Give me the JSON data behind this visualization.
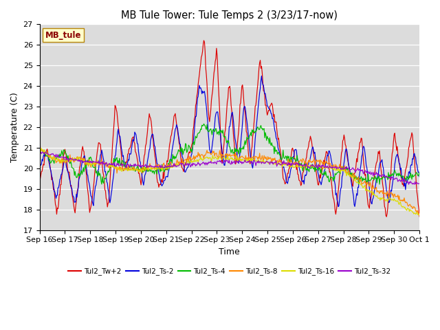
{
  "title": "MB Tule Tower: Tule Temps 2 (3/23/17-now)",
  "xlabel": "Time",
  "ylabel": "Temperature (C)",
  "ylim": [
    17.0,
    27.0
  ],
  "yticks": [
    17.0,
    18.0,
    19.0,
    20.0,
    21.0,
    22.0,
    23.0,
    24.0,
    25.0,
    26.0,
    27.0
  ],
  "bg_color": "#dcdcdc",
  "legend_label": "MB_tule",
  "series_colors": {
    "Tul2_Tw+2": "#dd0000",
    "Tul2_Ts-2": "#0000dd",
    "Tul2_Ts-4": "#00bb00",
    "Tul2_Ts-8": "#ff8800",
    "Tul2_Ts-16": "#dddd00",
    "Tul2_Ts-32": "#9900cc"
  },
  "xtick_labels": [
    "Sep 16",
    "Sep 17",
    "Sep 18",
    "Sep 19",
    "Sep 20",
    "Sep 21",
    "Sep 22",
    "Sep 23",
    "Sep 24",
    "Sep 25",
    "Sep 26",
    "Sep 27",
    "Sep 28",
    "Sep 29",
    "Sep 30",
    "Oct 1"
  ],
  "n_points": 600
}
